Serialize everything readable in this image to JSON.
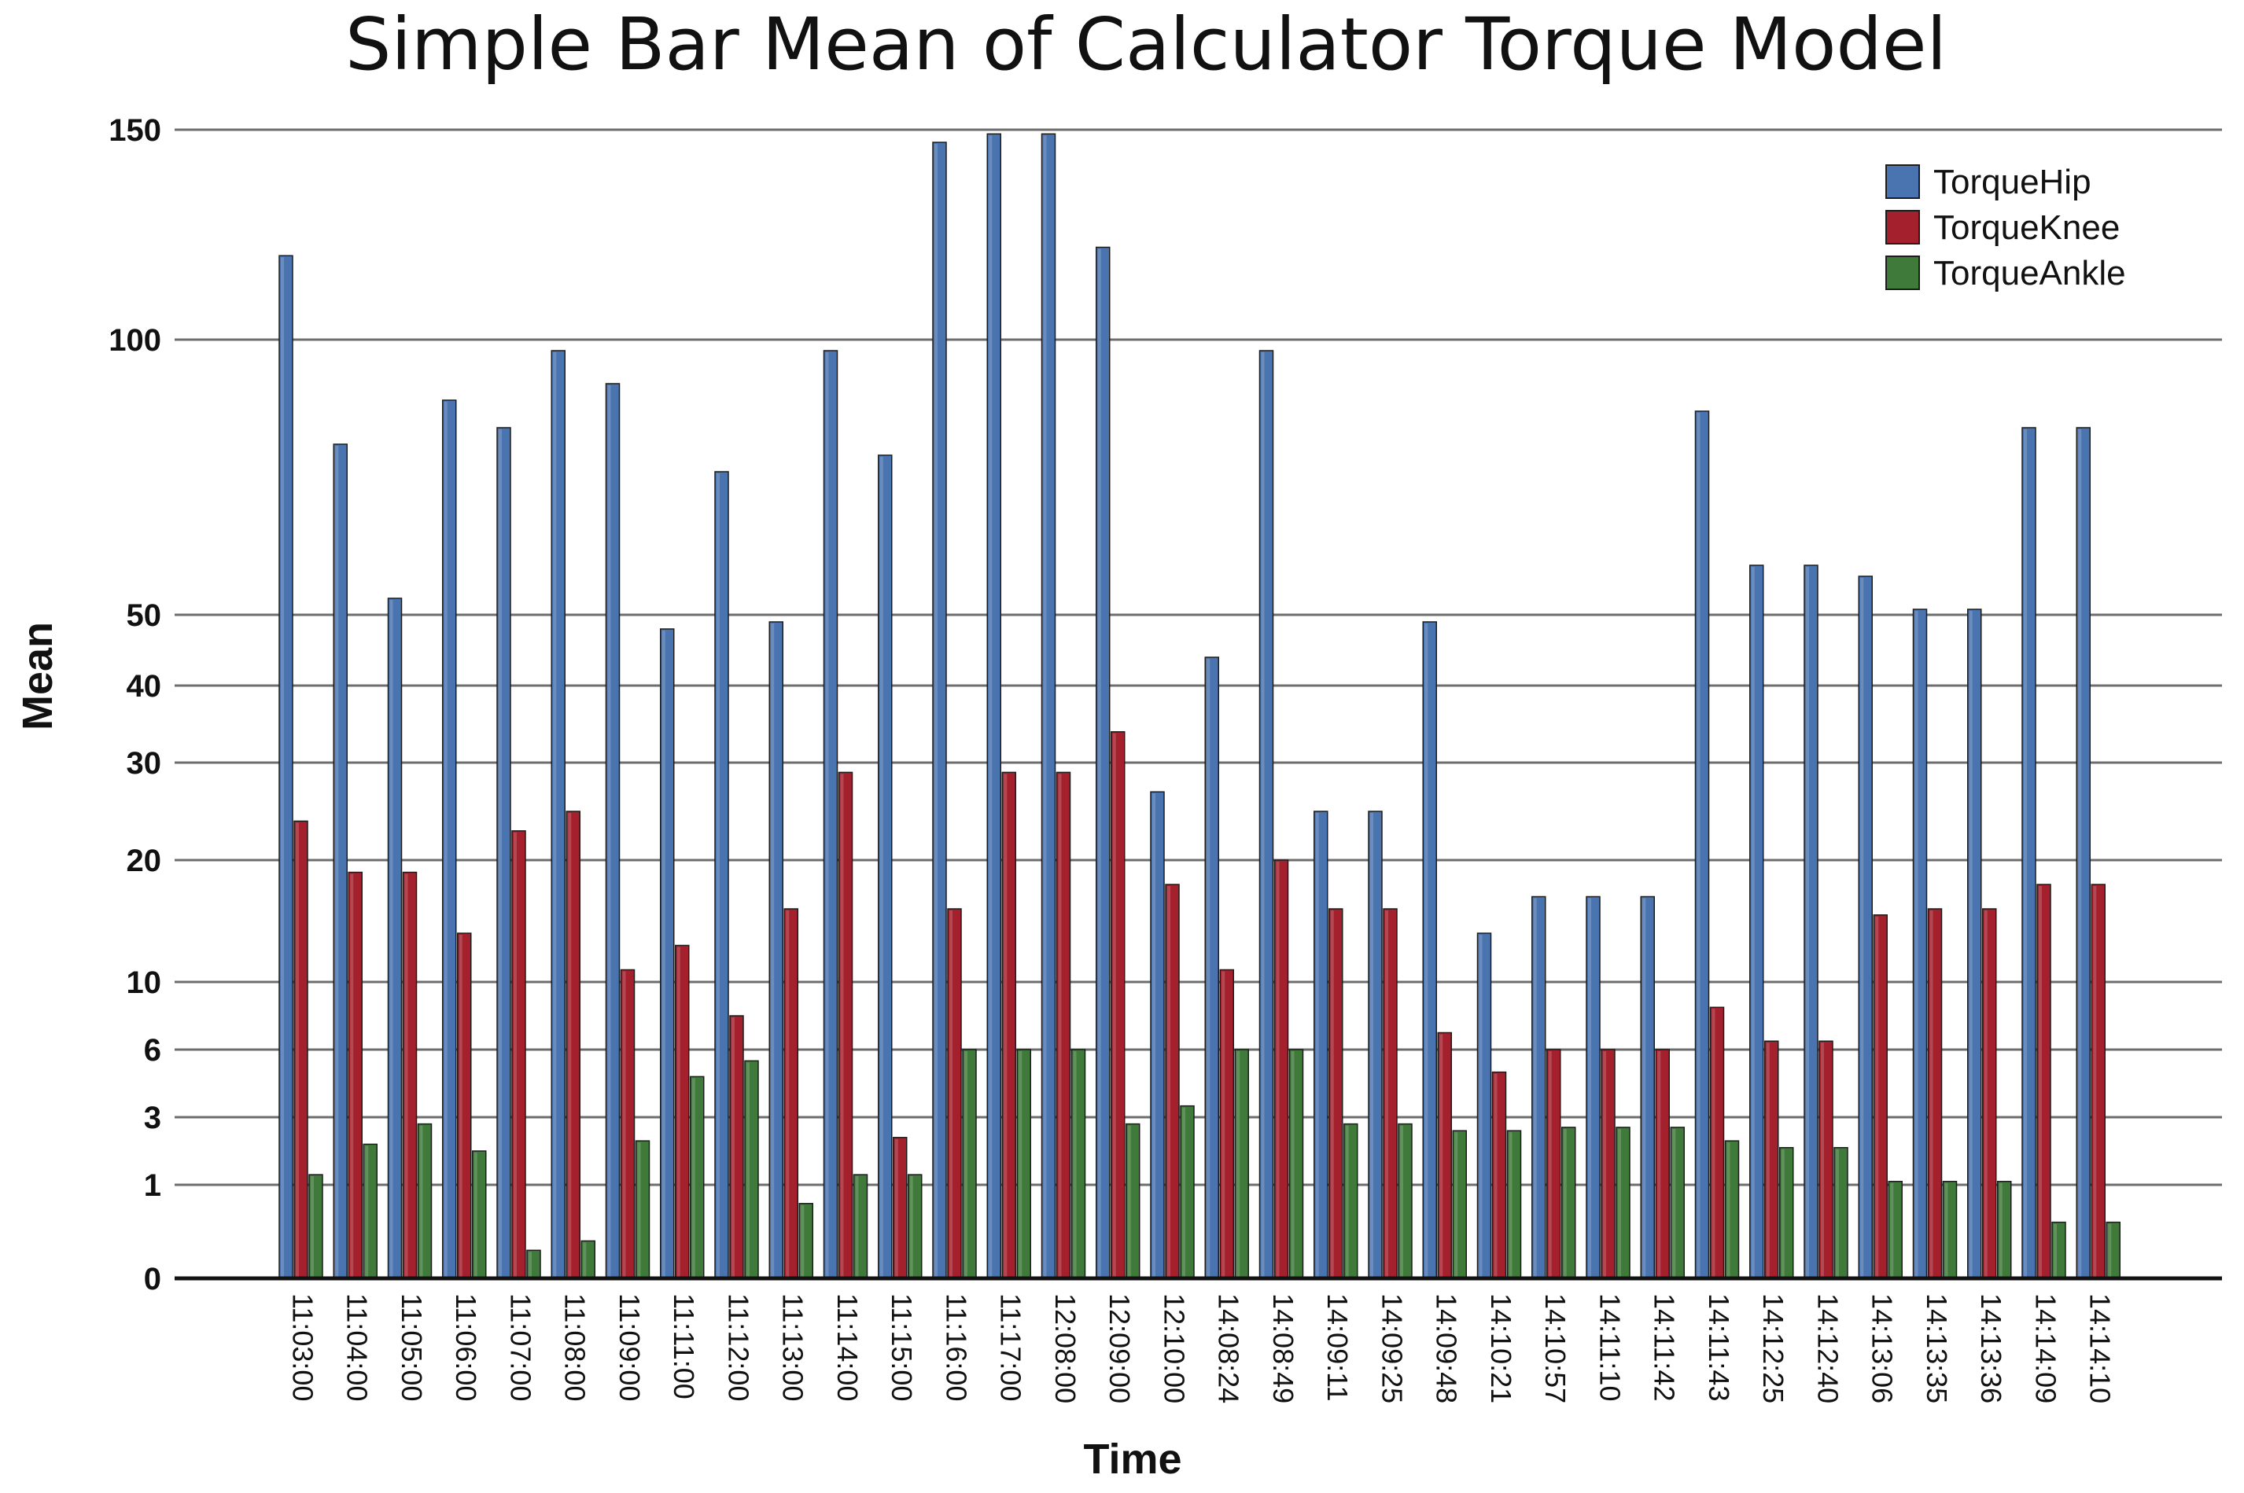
{
  "chart_data": {
    "type": "bar",
    "title": "Simple Bar Mean of Calculator Torque Model",
    "xlabel": "Time",
    "ylabel": "Mean",
    "yticks": [
      0,
      1,
      3,
      6,
      10,
      20,
      30,
      40,
      50,
      100,
      150
    ],
    "grid": true,
    "legend_position": "top-right",
    "categories": [
      "11:03:00",
      "11:04:00",
      "11:05:00",
      "11:06:00",
      "11:07:00",
      "11:08:00",
      "11:09:00",
      "11:11:00",
      "11:12:00",
      "11:13:00",
      "11:14:00",
      "11:15:00",
      "11:16:00",
      "11:17:00",
      "12:08:00",
      "12:09:00",
      "12:10:00",
      "14:08:24",
      "14:08:49",
      "14:09:11",
      "14:09:25",
      "14:09:48",
      "14:10:21",
      "14:10:57",
      "14:11:10",
      "14:11:42",
      "14:11:43",
      "14:12:25",
      "14:12:40",
      "14:13:06",
      "14:13:35",
      "14:13:36",
      "14:14:09",
      "14:14:10"
    ],
    "series": [
      {
        "name": "TorqueHip",
        "color": "#4a74b0",
        "values": [
          120,
          81,
          53,
          89,
          84,
          98,
          92,
          48,
          76,
          49,
          98,
          79,
          147,
          149,
          149,
          122,
          27,
          44,
          98,
          25,
          25,
          49,
          14,
          17,
          17,
          17,
          87,
          59,
          59,
          57,
          51,
          51,
          84,
          84
        ]
      },
      {
        "name": "TorqueKnee",
        "color": "#a4202c",
        "values": [
          24,
          19,
          19,
          14,
          23,
          25,
          11,
          13,
          8,
          16,
          29,
          2.4,
          16,
          29,
          29,
          34,
          18,
          11,
          20,
          16,
          16,
          7,
          5,
          6,
          6,
          6,
          8.5,
          6.5,
          6.5,
          15.5,
          16,
          16,
          18,
          18
        ]
      },
      {
        "name": "TorqueAnkle",
        "color": "#3f7a3a",
        "values": [
          1.3,
          2.2,
          2.8,
          2.0,
          0.3,
          0.4,
          2.3,
          4.8,
          5.5,
          0.8,
          1.3,
          1.3,
          6,
          6,
          6,
          2.8,
          3.5,
          6,
          6,
          2.8,
          2.8,
          2.6,
          2.6,
          2.7,
          2.7,
          2.7,
          2.3,
          2.1,
          2.1,
          1.1,
          1.1,
          1.1,
          0.6,
          0.6
        ]
      }
    ]
  }
}
